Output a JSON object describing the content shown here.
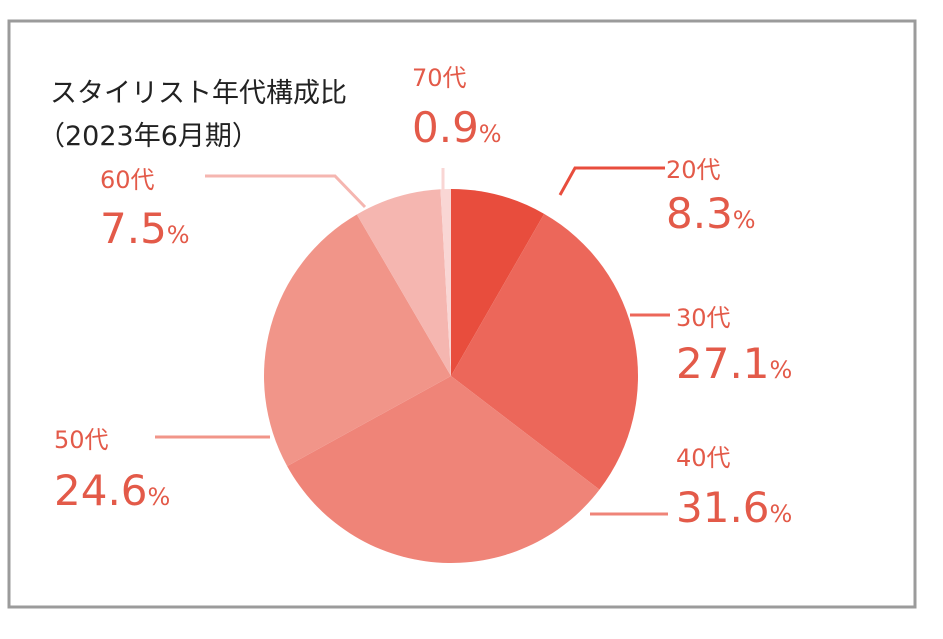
{
  "chart_data": {
    "type": "pie",
    "title": "スタイリスト年代構成比",
    "subtitle": "（2023年6月期）",
    "unit": "%",
    "slices": [
      {
        "label": "20代",
        "value": 8.3,
        "value_text": "8.3",
        "color": "#e84d3d"
      },
      {
        "label": "30代",
        "value": 27.1,
        "value_text": "27.1",
        "color": "#ec675a"
      },
      {
        "label": "40代",
        "value": 31.6,
        "value_text": "31.6",
        "color": "#ef8478"
      },
      {
        "label": "50代",
        "value": 24.6,
        "value_text": "24.6",
        "color": "#f19589"
      },
      {
        "label": "60代",
        "value": 7.5,
        "value_text": "7.5",
        "color": "#f5b6b0"
      },
      {
        "label": "70代",
        "value": 0.9,
        "value_text": "0.9",
        "color": "#f9d6d4"
      }
    ],
    "label_color": "#e35a49",
    "border_color": "#9b9b9b",
    "start_angle": "12 o'clock",
    "direction": "clockwise"
  }
}
